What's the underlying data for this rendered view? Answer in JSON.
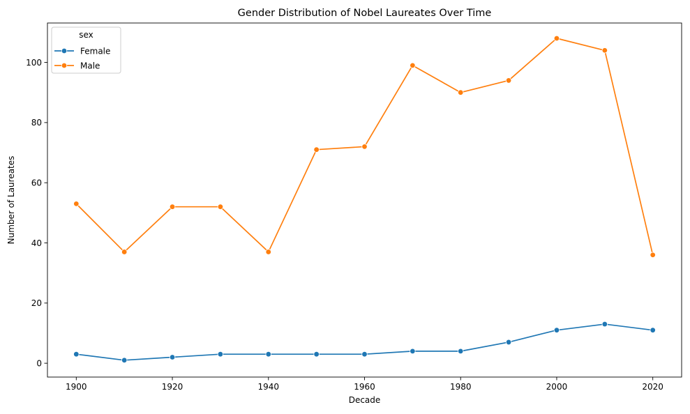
{
  "chart_data": {
    "type": "line",
    "title": "Gender Distribution of Nobel Laureates Over Time",
    "xlabel": "Decade",
    "ylabel": "Number of Laureates",
    "x": [
      1900,
      1910,
      1920,
      1930,
      1940,
      1950,
      1960,
      1970,
      1980,
      1990,
      2000,
      2010,
      2020
    ],
    "xlim": [
      1894,
      2026
    ],
    "ylim": [
      -4.6,
      113.1
    ],
    "xticks": [
      1900,
      1920,
      1940,
      1960,
      1980,
      2000,
      2020
    ],
    "yticks": [
      0,
      20,
      40,
      60,
      80,
      100
    ],
    "grid": false,
    "legend": {
      "title": "sex",
      "placement": "top-left"
    },
    "series": [
      {
        "name": "Female",
        "color": "#1f77b4",
        "values": [
          3,
          1,
          2,
          3,
          3,
          3,
          3,
          4,
          4,
          7,
          11,
          13,
          11
        ]
      },
      {
        "name": "Male",
        "color": "#ff7f0e",
        "values": [
          53,
          37,
          52,
          52,
          37,
          71,
          72,
          99,
          90,
          94,
          108,
          104,
          36
        ]
      }
    ]
  }
}
